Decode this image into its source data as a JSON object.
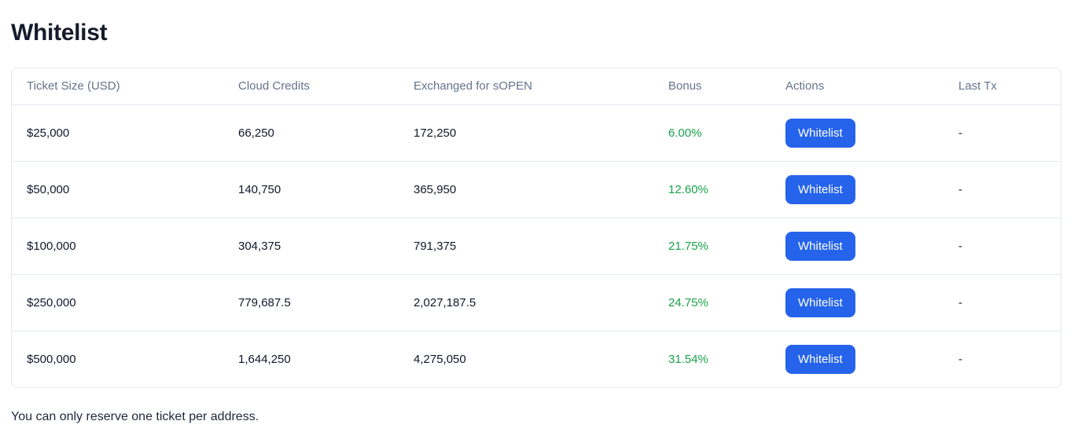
{
  "page": {
    "title": "Whitelist",
    "footnote": "You can only reserve one ticket per address."
  },
  "table": {
    "columns": [
      "Ticket Size (USD)",
      "Cloud Credits",
      "Exchanged for sOPEN",
      "Bonus",
      "Actions",
      "Last Tx"
    ],
    "rows": [
      {
        "ticket_size": "$25,000",
        "cloud_credits": "66,250",
        "exchanged": "172,250",
        "bonus": "6.00%",
        "action_label": "Whitelist",
        "last_tx": "-"
      },
      {
        "ticket_size": "$50,000",
        "cloud_credits": "140,750",
        "exchanged": "365,950",
        "bonus": "12.60%",
        "action_label": "Whitelist",
        "last_tx": "-"
      },
      {
        "ticket_size": "$100,000",
        "cloud_credits": "304,375",
        "exchanged": "791,375",
        "bonus": "21.75%",
        "action_label": "Whitelist",
        "last_tx": "-"
      },
      {
        "ticket_size": "$250,000",
        "cloud_credits": "779,687.5",
        "exchanged": "2,027,187.5",
        "bonus": "24.75%",
        "action_label": "Whitelist",
        "last_tx": "-"
      },
      {
        "ticket_size": "$500,000",
        "cloud_credits": "1,644,250",
        "exchanged": "4,275,050",
        "bonus": "31.54%",
        "action_label": "Whitelist",
        "last_tx": "-"
      }
    ]
  },
  "colors": {
    "accent_blue": "#2563eb",
    "bonus_green": "#16a34a",
    "border_gray": "#e2e8f0",
    "header_text_gray": "#64748b",
    "title_dark": "#151b2c"
  }
}
